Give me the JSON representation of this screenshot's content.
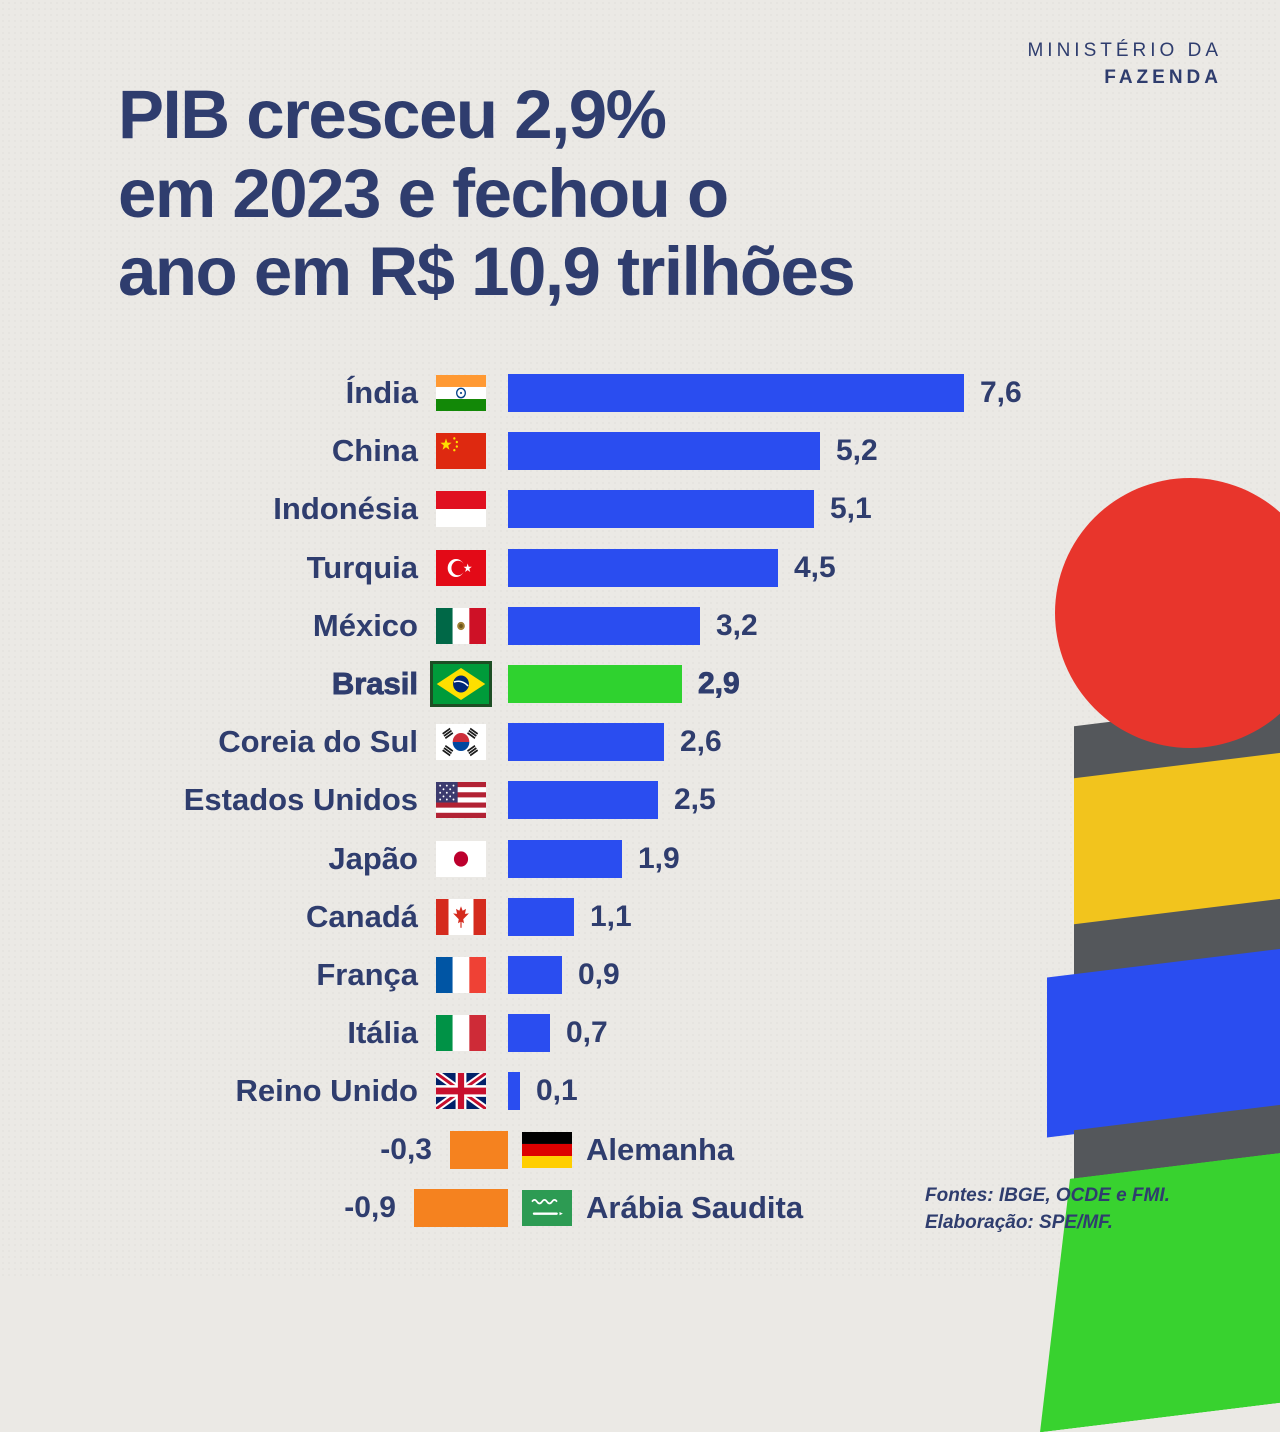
{
  "brand": {
    "line1": "MINISTÉRIO DA",
    "line2": "FAZENDA"
  },
  "title": {
    "line1": "PIB cresceu 2,9%",
    "line2": "em 2023 e fechou o",
    "line3": "ano em R$ 10,9 trilhões"
  },
  "source": {
    "line1": "Fontes: IBGE, OCDE e FMI.",
    "line2": "Elaboração: SPE/MF."
  },
  "colors": {
    "ink": "#2f3d6e",
    "bar_positive": "#2a4df0",
    "bar_highlight": "#2fd22f",
    "bar_negative": "#f5821f"
  },
  "chart_data": {
    "type": "bar",
    "orientation": "horizontal",
    "title": "PIB cresceu 2,9% em 2023 e fechou o ano em R$ 10,9 trilhões",
    "value_unit": "percent GDP growth 2023",
    "xlim": [
      -1,
      8
    ],
    "highlight": "Brasil",
    "rows": [
      {
        "label": "Índia",
        "flag": "india",
        "value": 7.6,
        "display": "7,6"
      },
      {
        "label": "China",
        "flag": "china",
        "value": 5.2,
        "display": "5,2"
      },
      {
        "label": "Indonésia",
        "flag": "indonesia",
        "value": 5.1,
        "display": "5,1"
      },
      {
        "label": "Turquia",
        "flag": "turkey",
        "value": 4.5,
        "display": "4,5"
      },
      {
        "label": "México",
        "flag": "mexico",
        "value": 3.2,
        "display": "3,2"
      },
      {
        "label": "Brasil",
        "flag": "brazil",
        "value": 2.9,
        "display": "2,9",
        "highlight": true
      },
      {
        "label": "Coreia do Sul",
        "flag": "south-korea",
        "value": 2.6,
        "display": "2,6"
      },
      {
        "label": "Estados Unidos",
        "flag": "usa",
        "value": 2.5,
        "display": "2,5"
      },
      {
        "label": "Japão",
        "flag": "japan",
        "value": 1.9,
        "display": "1,9"
      },
      {
        "label": "Canadá",
        "flag": "canada",
        "value": 1.1,
        "display": "1,1"
      },
      {
        "label": "França",
        "flag": "france",
        "value": 0.9,
        "display": "0,9"
      },
      {
        "label": "Itália",
        "flag": "italy",
        "value": 0.7,
        "display": "0,7"
      },
      {
        "label": "Reino Unido",
        "flag": "uk",
        "value": 0.1,
        "display": "0,1"
      },
      {
        "label": "Alemanha",
        "flag": "germany",
        "value": -0.3,
        "display": "-0,3"
      },
      {
        "label": "Arábia Saudita",
        "flag": "saudi-arabia",
        "value": -0.9,
        "display": "-0,9"
      }
    ]
  }
}
